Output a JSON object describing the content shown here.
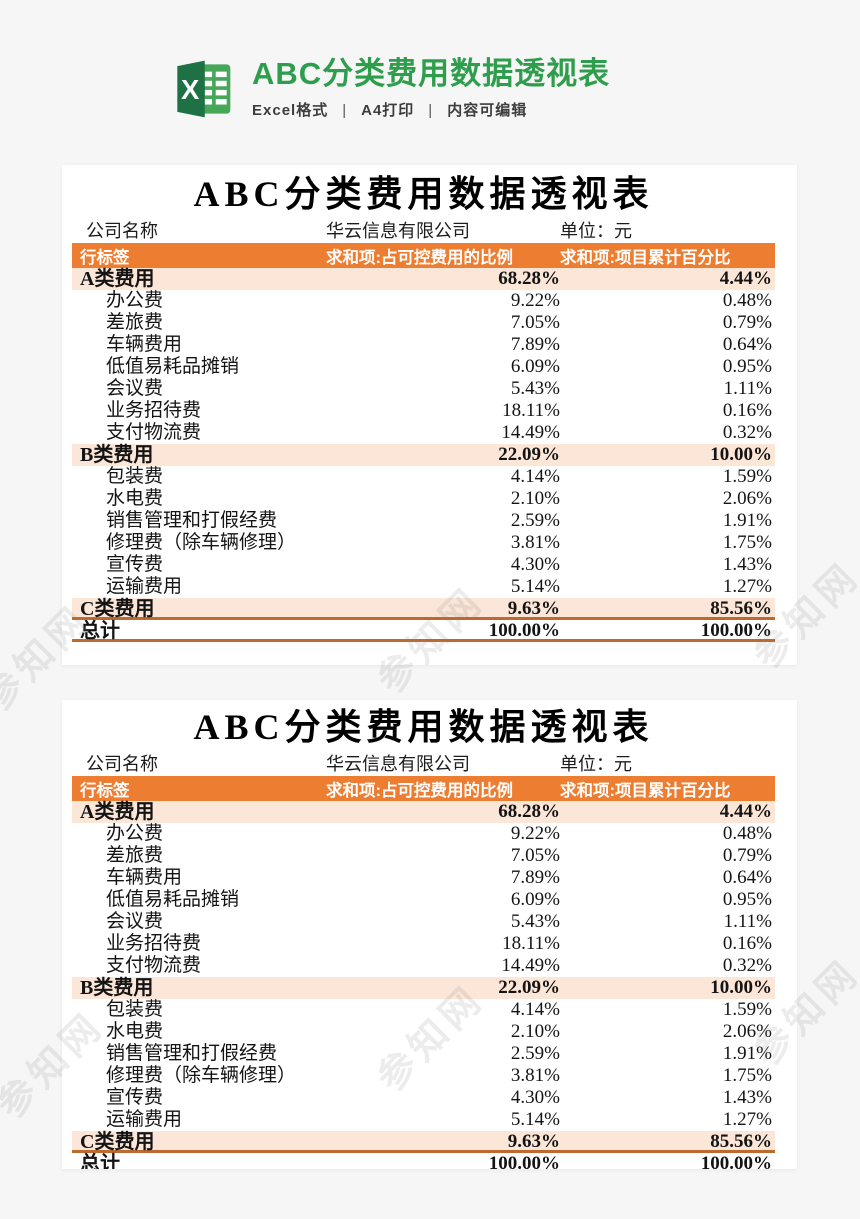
{
  "header": {
    "title": "ABC分类费用数据透视表",
    "features": [
      "Excel格式",
      "A4打印",
      "内容可编辑"
    ],
    "separator": "|"
  },
  "watermark": {
    "text": "参知网"
  },
  "table": {
    "title": "ABC分类费用数据透视表",
    "company_label": "公司名称",
    "company_name": "华云信息有限公司",
    "unit_label": "单位：元",
    "columns": [
      "行标签",
      "求和项:占可控费用的比例",
      "求和项:项目累计百分比"
    ],
    "rows": [
      {
        "label": "A类费用",
        "ratio": "68.28%",
        "cum": "4.44%",
        "type": "category"
      },
      {
        "label": "办公费",
        "ratio": "9.22%",
        "cum": "0.48%",
        "type": "item"
      },
      {
        "label": "差旅费",
        "ratio": "7.05%",
        "cum": "0.79%",
        "type": "item"
      },
      {
        "label": "车辆费用",
        "ratio": "7.89%",
        "cum": "0.64%",
        "type": "item"
      },
      {
        "label": "低值易耗品摊销",
        "ratio": "6.09%",
        "cum": "0.95%",
        "type": "item"
      },
      {
        "label": "会议费",
        "ratio": "5.43%",
        "cum": "1.11%",
        "type": "item"
      },
      {
        "label": "业务招待费",
        "ratio": "18.11%",
        "cum": "0.16%",
        "type": "item"
      },
      {
        "label": "支付物流费",
        "ratio": "14.49%",
        "cum": "0.32%",
        "type": "item"
      },
      {
        "label": "B类费用",
        "ratio": "22.09%",
        "cum": "10.00%",
        "type": "category"
      },
      {
        "label": "包装费",
        "ratio": "4.14%",
        "cum": "1.59%",
        "type": "item"
      },
      {
        "label": "水电费",
        "ratio": "2.10%",
        "cum": "2.06%",
        "type": "item"
      },
      {
        "label": "销售管理和打假经费",
        "ratio": "2.59%",
        "cum": "1.91%",
        "type": "item"
      },
      {
        "label": "修理费（除车辆修理）",
        "ratio": "3.81%",
        "cum": "1.75%",
        "type": "item"
      },
      {
        "label": "宣传费",
        "ratio": "4.30%",
        "cum": "1.43%",
        "type": "item"
      },
      {
        "label": "运输费用",
        "ratio": "5.14%",
        "cum": "1.27%",
        "type": "item"
      },
      {
        "label": "C类费用",
        "ratio": "9.63%",
        "cum": "85.56%",
        "type": "category",
        "rule": true
      },
      {
        "label": "总计",
        "ratio": "100.00%",
        "cum": "100.00%",
        "type": "total",
        "rule": true
      }
    ],
    "colors": {
      "header_bg": "#EC7D31",
      "header_text": "#FFFFFF",
      "category_bg": "#FBE6D7",
      "rule_line": "#BE6A2E",
      "brand_green": "#2E9E4D",
      "page_bg": "#F6F6F7"
    }
  }
}
